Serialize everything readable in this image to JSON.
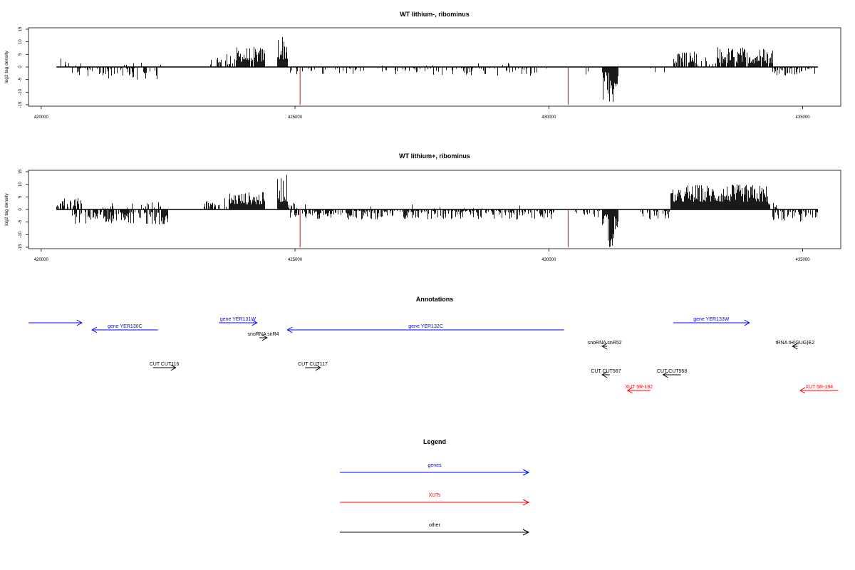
{
  "colors": {
    "gene": "#0000ff",
    "xut": "#ff0000",
    "other": "#000000",
    "marker": "#ff0000",
    "bars": "#000000"
  },
  "chart_data": [
    {
      "type": "bar",
      "title": "WT lithium-, ribominus",
      "ylabel": "log2 tag density",
      "xlim": [
        419750,
        435750
      ],
      "ylim": [
        -15,
        15
      ],
      "x_ticks": [
        420000,
        425000,
        430000,
        435000
      ],
      "y_ticks": [
        15,
        10,
        5,
        0,
        -5,
        -10,
        -15
      ],
      "markers_x": [
        425100,
        430380
      ],
      "region_x": [
        420300,
        435300
      ],
      "profile": {
        "plus": [
          {
            "x": [
              420300,
              420800
            ],
            "min": 0.5,
            "max": 4,
            "density": 0.25
          },
          {
            "x": [
              421400,
              422400
            ],
            "min": 0.5,
            "max": 3,
            "density": 0.06
          },
          {
            "x": [
              423300,
              423800
            ],
            "min": 1,
            "max": 6,
            "density": 0.45
          },
          {
            "x": [
              423800,
              424400
            ],
            "min": 2,
            "max": 8,
            "density": 0.95
          },
          {
            "x": [
              424650,
              424850
            ],
            "min": 3,
            "max": 13.5,
            "density": 1.0
          },
          {
            "x": [
              426300,
              429500
            ],
            "min": 0.5,
            "max": 2,
            "density": 0.02
          },
          {
            "x": [
              432450,
              432900
            ],
            "min": 1.5,
            "max": 6.5,
            "density": 0.7
          },
          {
            "x": [
              432900,
              433300
            ],
            "min": 0.5,
            "max": 4,
            "density": 0.4
          },
          {
            "x": [
              433300,
              434400
            ],
            "min": 1.5,
            "max": 8,
            "density": 0.85
          }
        ],
        "minus": [
          {
            "x": [
              420600,
              422300
            ],
            "min": 0.5,
            "max": 5,
            "density": 0.35
          },
          {
            "x": [
              424900,
              426200
            ],
            "min": 0.5,
            "max": 3,
            "density": 0.25
          },
          {
            "x": [
              426200,
              430000
            ],
            "min": 0.5,
            "max": 3.5,
            "density": 0.22
          },
          {
            "x": [
              430500,
              430800
            ],
            "min": 0.5,
            "max": 3,
            "density": 0.2
          },
          {
            "x": [
              431050,
              431350
            ],
            "min": 2,
            "max": 14,
            "density": 1.0
          },
          {
            "x": [
              431900,
              432300
            ],
            "min": 0.5,
            "max": 3,
            "density": 0.15
          },
          {
            "x": [
              434400,
              435300
            ],
            "min": 0.5,
            "max": 3.5,
            "density": 0.35
          }
        ]
      }
    },
    {
      "type": "bar",
      "title": "WT lithium+, ribominus",
      "ylabel": "log2 tag density",
      "xlim": [
        419750,
        435750
      ],
      "ylim": [
        -15,
        15
      ],
      "x_ticks": [
        420000,
        425000,
        430000,
        435000
      ],
      "y_ticks": [
        15,
        10,
        5,
        0,
        -5,
        -10,
        -15
      ],
      "markers_x": [
        425100,
        430380
      ],
      "region_x": [
        420300,
        435300
      ],
      "profile": {
        "plus": [
          {
            "x": [
              420300,
              420800
            ],
            "min": 1,
            "max": 5.5,
            "density": 0.7
          },
          {
            "x": [
              421200,
              422400
            ],
            "min": 0.5,
            "max": 3,
            "density": 0.15
          },
          {
            "x": [
              423200,
              423700
            ],
            "min": 1,
            "max": 5,
            "density": 0.5
          },
          {
            "x": [
              423700,
              424400
            ],
            "min": 2,
            "max": 7,
            "density": 0.95
          },
          {
            "x": [
              424650,
              424850
            ],
            "min": 3,
            "max": 14,
            "density": 1.0
          },
          {
            "x": [
              424850,
              425200
            ],
            "min": 0.5,
            "max": 3,
            "density": 0.4
          },
          {
            "x": [
              426300,
              430000
            ],
            "min": 0.5,
            "max": 2,
            "density": 0.03
          },
          {
            "x": [
              432400,
              432700
            ],
            "min": 3,
            "max": 8,
            "density": 1.0
          },
          {
            "x": [
              432700,
              434300
            ],
            "min": 3,
            "max": 10,
            "density": 1.0
          },
          {
            "x": [
              434300,
              434500
            ],
            "min": 0.5,
            "max": 3,
            "density": 0.5
          }
        ],
        "minus": [
          {
            "x": [
              420600,
              422500
            ],
            "min": 1,
            "max": 6,
            "density": 0.75
          },
          {
            "x": [
              424900,
              430100
            ],
            "min": 0.5,
            "max": 4,
            "density": 0.6
          },
          {
            "x": [
              430500,
              431000
            ],
            "min": 0.5,
            "max": 3,
            "density": 0.4
          },
          {
            "x": [
              431050,
              431350
            ],
            "min": 2,
            "max": 15,
            "density": 1.0
          },
          {
            "x": [
              431800,
              432400
            ],
            "min": 0.5,
            "max": 4,
            "density": 0.5
          },
          {
            "x": [
              434400,
              435300
            ],
            "min": 0.5,
            "max": 5,
            "density": 0.6
          }
        ]
      }
    }
  ],
  "annotations": {
    "title": "Annotations",
    "xlim": [
      419750,
      435750
    ],
    "items": [
      {
        "label": "",
        "kind": "gene",
        "start": 419750,
        "end": 420800,
        "strand": "+",
        "row": 1
      },
      {
        "label": "gene YER130C",
        "kind": "gene",
        "start": 421000,
        "end": 422300,
        "strand": "-",
        "row": 2
      },
      {
        "label": "gene YER131W",
        "kind": "gene",
        "start": 423500,
        "end": 424250,
        "strand": "+",
        "row": 1
      },
      {
        "label": "gene YER132C",
        "kind": "gene",
        "start": 424850,
        "end": 430300,
        "strand": "-",
        "row": 2
      },
      {
        "label": "gene YER133W",
        "kind": "gene",
        "start": 432450,
        "end": 433950,
        "strand": "+",
        "row": 1
      },
      {
        "label": "snoRNA snR4",
        "kind": "other",
        "start": 424300,
        "end": 424450,
        "strand": "+",
        "row": 3
      },
      {
        "label": "snoRNA snR52",
        "kind": "other",
        "start": 431050,
        "end": 431150,
        "strand": "-",
        "row": 4
      },
      {
        "label": "tRNA tH(GUG)E2",
        "kind": "other",
        "start": 434800,
        "end": 434900,
        "strand": "-",
        "row": 4
      },
      {
        "label": "CUT CUT116",
        "kind": "other",
        "start": 422200,
        "end": 422650,
        "strand": "+",
        "row": 5
      },
      {
        "label": "CUT CUT117",
        "kind": "other",
        "start": 425200,
        "end": 425500,
        "strand": "+",
        "row": 5
      },
      {
        "label": "CUT CUT567",
        "kind": "other",
        "start": 431050,
        "end": 431200,
        "strand": "-",
        "row": 6
      },
      {
        "label": "CUT CUT568",
        "kind": "other",
        "start": 432250,
        "end": 432600,
        "strand": "-",
        "row": 6
      },
      {
        "label": "XUT 5R-192",
        "kind": "xut",
        "start": 431550,
        "end": 432000,
        "strand": "-",
        "row": 7
      },
      {
        "label": "XUT 5R-194",
        "kind": "xut",
        "start": 434950,
        "end": 435700,
        "strand": "-",
        "row": 7
      }
    ]
  },
  "legend": {
    "title": "Legend",
    "items": [
      {
        "label": "genes",
        "kind": "gene"
      },
      {
        "label": "XUTs",
        "kind": "xut"
      },
      {
        "label": "other",
        "kind": "other"
      }
    ]
  }
}
